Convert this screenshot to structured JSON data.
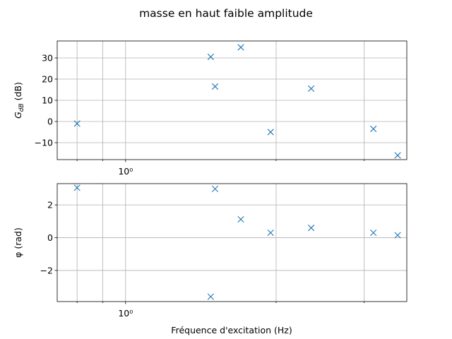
{
  "chart_data": {
    "title": "masse en haut faible amplitude",
    "type": "scatter",
    "x_scale": "log",
    "xlabel": "Fréquence d'excitation (Hz)",
    "xlim": [
      0.73,
      3.65
    ],
    "x_tick_labels": [
      {
        "value": 1.0,
        "label": "10⁰"
      }
    ],
    "x_minor_ticks": [
      0.8,
      0.9,
      2,
      3
    ],
    "grid": true,
    "marker": "x",
    "color": "#1f77b4",
    "x": [
      0.8,
      1.48,
      1.51,
      1.7,
      1.95,
      2.35,
      3.13,
      3.5
    ],
    "subplots": [
      {
        "ylabel_main": "G",
        "ylabel_sub": "dB",
        "ylabel_unit": " (dB)",
        "ylim": [
          -18,
          38
        ],
        "yticks": [
          -10,
          0,
          10,
          20,
          30
        ],
        "y": [
          -1,
          30.5,
          16.5,
          35,
          -5,
          15.5,
          -3.5,
          -16
        ]
      },
      {
        "ylabel": "φ (rad)",
        "ylim": [
          -3.9,
          3.3
        ],
        "yticks": [
          -2,
          0,
          2
        ],
        "y": [
          3.05,
          -3.6,
          2.98,
          1.12,
          0.3,
          0.6,
          0.3,
          0.15
        ]
      }
    ]
  }
}
